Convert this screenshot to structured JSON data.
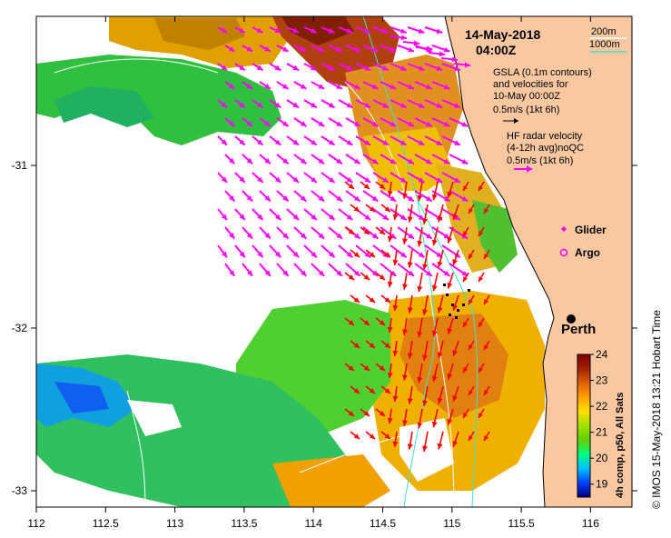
{
  "header": {
    "date": "14-May-2018",
    "time": "04:00Z"
  },
  "depth_legend": {
    "shallow_label": "200m",
    "deep_label": "1000m",
    "shallow_color": "#ffffff",
    "deep_color": "#40e0d0"
  },
  "gsla_legend": {
    "line1": "GSLA (0.1m contours)",
    "line2": "and velocities for",
    "line3": "10-May 00:00Z",
    "scale": "0.5m/s (1kt 6h)",
    "arrow_color": "#000000"
  },
  "hf_legend": {
    "line1": "HF radar velocity",
    "line2": "(4-12h avg)noQC",
    "scale": "0.5m/s (1kt 6h)",
    "arrow_color": "#ff00ff",
    "secondary_color": "#ff0000"
  },
  "markers": {
    "glider": {
      "label": "Glider",
      "color": "#ff00ff"
    },
    "argo": {
      "label": "Argo",
      "color": "#ff00ff"
    }
  },
  "city": {
    "label": "Perth",
    "lon": 115.86,
    "lat": -31.95
  },
  "axes": {
    "x_ticks": [
      "112",
      "112.5",
      "113",
      "113.5",
      "114",
      "114.5",
      "115",
      "115.5",
      "116"
    ],
    "y_ticks": [
      "-31",
      "-32",
      "-33"
    ],
    "lon_range": [
      112,
      116.3
    ],
    "lat_range": [
      -33.1,
      -30.1
    ]
  },
  "colorbar": {
    "title": "4h comp, p50, All Sats",
    "ticks": [
      "24",
      "23",
      "22",
      "21",
      "20",
      "19"
    ],
    "range": [
      18.5,
      24
    ],
    "colors": [
      "#000080",
      "#0040ff",
      "#00c0ff",
      "#00ff80",
      "#60d000",
      "#a0e000",
      "#ffe000",
      "#ffa000",
      "#e06000",
      "#a02000",
      "#800000"
    ]
  },
  "credit": "© IMOS 15-May-2018 13:21 Hobart Time",
  "colors": {
    "land": "#f9c8a0",
    "coast": "#000000",
    "background": "#ffffff"
  }
}
